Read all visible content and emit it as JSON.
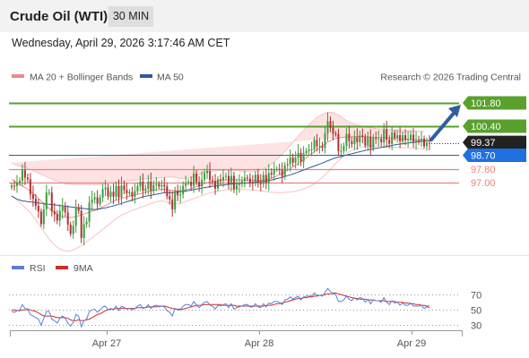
{
  "header": {
    "title": "Crude Oil (WTI)",
    "interval": "30 MIN"
  },
  "datetime": "Wednesday, April 29, 2026 3:17:46 AM CET",
  "legend": {
    "ma20": "MA 20 + Bollinger Bands",
    "ma50": "MA 50",
    "copyright": "Research © 2026 Trading Central",
    "rsi": "RSI",
    "rsi_ma": "9MA"
  },
  "colors": {
    "resistance": "#5aa02c",
    "support": "#e8837e",
    "ma50": "#2d5c9a",
    "ma20": "#f08a8a",
    "band_fill": "#fde3e3",
    "bull": "#3d9a3d",
    "bear": "#b03030",
    "price_tag": "#222222",
    "pivot_tag": "#1f6fe0",
    "arrow": "#2e5f9e",
    "rsi": "#5b7fd6",
    "rsi_ma": "#d42a2a"
  },
  "chart_data": [
    {
      "type": "candlestick",
      "name": "price",
      "x_ticks": [
        "Apr 27",
        "Apr 28",
        "Apr 29"
      ],
      "ylim": [
        92.8,
        102.5
      ],
      "levels": [
        {
          "value": 101.8,
          "label": "101.80",
          "kind": "resistance"
        },
        {
          "value": 100.4,
          "label": "100.40",
          "kind": "resistance"
        },
        {
          "value": 99.37,
          "label": "99.37",
          "kind": "last"
        },
        {
          "value": 98.7,
          "label": "98.70",
          "kind": "pivot"
        },
        {
          "value": 97.8,
          "label": "97.80",
          "kind": "support"
        },
        {
          "value": 97.0,
          "label": "97.00",
          "kind": "support"
        }
      ],
      "closes": [
        96.82,
        96.8,
        97.0,
        97.1,
        97.75,
        97.3,
        97.2,
        96.3,
        96.03,
        95.6,
        95.26,
        94.5,
        95.39,
        96.4,
        96.4,
        95.28,
        95.09,
        94.72,
        95.3,
        95.55,
        95.21,
        94.47,
        93.91,
        94.4,
        95.52,
        95.3,
        93.67,
        94.5,
        94.65,
        95.8,
        95.99,
        96.12,
        95.72,
        96.1,
        96.61,
        96.7,
        96.15,
        96.45,
        96.16,
        96.8,
        96.11,
        96.83,
        96.56,
        96.35,
        96.43,
        96.16,
        96.48,
        96.79,
        97.06,
        96.5,
        96.63,
        97.07,
        96.5,
        96.87,
        96.91,
        96.77,
        96.86,
        96.77,
        96.18,
        95.99,
        95.39,
        96.5,
        96.23,
        96.3,
        96.8,
        97.0,
        97.05,
        96.8,
        97.55,
        97.04,
        96.76,
        97.18,
        97.57,
        97.7,
        97.15,
        97.1,
        96.65,
        97.2,
        97.14,
        97.34,
        97.4,
        96.92,
        97.41,
        96.6,
        96.86,
        96.97,
        97.09,
        97.3,
        97.25,
        97.0,
        96.96,
        97.48,
        97.02,
        96.92,
        97.46,
        96.97,
        97.58,
        97.5,
        97.81,
        97.82,
        97.76,
        97.38,
        98.03,
        98.12,
        98.5,
        98.2,
        98.5,
        98.79,
        98.25,
        98.78,
        98.91,
        99.0,
        99.0,
        99.57,
        99.2,
        99.21,
        99.11,
        99.96,
        100.7,
        100.3,
        99.94,
        99.93,
        98.9,
        98.9,
        99.2,
        99.94,
        99.5,
        99.32,
        99.74,
        99.44,
        99.84,
        99.75,
        99.23,
        99.76,
        99.09,
        99.71,
        99.63,
        99.65,
        99.43,
        100.2,
        99.59,
        99.33,
        100.0,
        99.7,
        99.86,
        99.48,
        99.86,
        99.57,
        99.61,
        99.89,
        99.45,
        99.54,
        99.53,
        99.65,
        99.2,
        99.4,
        99.37
      ],
      "ma50": [
        96.2,
        96.1,
        96.0,
        95.95,
        95.9,
        95.88,
        95.86,
        95.84,
        95.82,
        95.8,
        95.78,
        95.76,
        95.74,
        95.72,
        95.7,
        95.68,
        95.66,
        95.64,
        95.62,
        95.6,
        95.58,
        95.56,
        95.54,
        95.52,
        95.5,
        95.48,
        95.46,
        95.44,
        95.42,
        95.4,
        95.39,
        95.38,
        95.4,
        95.42,
        95.45,
        95.48,
        95.52,
        95.56,
        95.6,
        95.65,
        95.7,
        95.75,
        95.8,
        95.85,
        95.9,
        95.95,
        96.0,
        96.05,
        96.1,
        96.15,
        96.18,
        96.21,
        96.24,
        96.27,
        96.3,
        96.33,
        96.36,
        96.39,
        96.4,
        96.4,
        96.4,
        96.42,
        96.44,
        96.46,
        96.48,
        96.5,
        96.52,
        96.55,
        96.58,
        96.61,
        96.64,
        96.67,
        96.7,
        96.73,
        96.76,
        96.78,
        96.8,
        96.82,
        96.84,
        96.86,
        96.88,
        96.9,
        96.92,
        96.93,
        96.94,
        96.95,
        96.96,
        96.97,
        96.98,
        96.99,
        97.0,
        97.02,
        97.04,
        97.06,
        97.08,
        97.1,
        97.13,
        97.16,
        97.2,
        97.24,
        97.28,
        97.32,
        97.37,
        97.42,
        97.47,
        97.52,
        97.58,
        97.64,
        97.7,
        97.76,
        97.82,
        97.88,
        97.94,
        98.0,
        98.06,
        98.12,
        98.18,
        98.25,
        98.32,
        98.38,
        98.44,
        98.49,
        98.54,
        98.58,
        98.62,
        98.66,
        98.7,
        98.74,
        98.78,
        98.82,
        98.86,
        98.9,
        98.94,
        98.97,
        99.0,
        99.03,
        99.06,
        99.09,
        99.12,
        99.15,
        99.18,
        99.21,
        99.24,
        99.27,
        99.3,
        99.32,
        99.34,
        99.36,
        99.38,
        99.4,
        99.42,
        99.44,
        99.46,
        99.48,
        99.5,
        99.52,
        99.53
      ],
      "ma20": [
        97.2,
        97.1,
        97.0,
        96.9,
        96.8,
        96.7,
        96.6,
        96.5,
        96.35,
        96.2,
        96.05,
        95.9,
        95.75,
        95.6,
        95.45,
        95.32,
        95.2,
        95.1,
        95.02,
        94.96,
        94.92,
        94.9,
        94.9,
        94.92,
        94.96,
        95.0,
        95.05,
        95.1,
        95.16,
        95.22,
        95.28,
        95.34,
        95.4,
        95.47,
        95.54,
        95.62,
        95.7,
        95.78,
        95.86,
        95.94,
        96.0,
        96.06,
        96.1,
        96.14,
        96.18,
        96.22,
        96.26,
        96.3,
        96.34,
        96.38,
        96.42,
        96.46,
        96.5,
        96.53,
        96.56,
        96.58,
        96.6,
        96.6,
        96.58,
        96.56,
        96.54,
        96.52,
        96.5,
        96.5,
        96.52,
        96.56,
        96.6,
        96.65,
        96.7,
        96.76,
        96.82,
        96.88,
        96.94,
        97.0,
        97.04,
        97.06,
        97.08,
        97.1,
        97.12,
        97.14,
        97.16,
        97.17,
        97.18,
        97.18,
        97.17,
        97.16,
        97.15,
        97.14,
        97.13,
        97.12,
        97.12,
        97.12,
        97.13,
        97.14,
        97.16,
        97.18,
        97.22,
        97.27,
        97.33,
        97.4,
        97.48,
        97.56,
        97.65,
        97.74,
        97.84,
        97.94,
        98.05,
        98.16,
        98.27,
        98.38,
        98.5,
        98.62,
        98.74,
        98.86,
        98.98,
        99.1,
        99.22,
        99.33,
        99.43,
        99.52,
        99.6,
        99.66,
        99.7,
        99.72,
        99.73,
        99.74,
        99.75,
        99.76,
        99.77,
        99.78,
        99.78,
        99.78,
        99.77,
        99.76,
        99.75,
        99.74,
        99.73,
        99.72,
        99.71,
        99.7,
        99.69,
        99.68,
        99.67,
        99.66,
        99.65,
        99.64,
        99.63,
        99.62,
        99.61,
        99.6,
        99.59,
        99.58,
        99.57,
        99.56,
        99.55,
        99.54,
        99.53
      ],
      "band_width": [
        1.0,
        1.0,
        1.05,
        1.1,
        1.15,
        1.2,
        1.25,
        1.3,
        1.38,
        1.45,
        1.52,
        1.6,
        1.68,
        1.76,
        1.84,
        1.9,
        1.95,
        2.0,
        2.02,
        2.03,
        2.03,
        2.02,
        2.0,
        1.97,
        1.93,
        1.88,
        1.83,
        1.78,
        1.72,
        1.66,
        1.6,
        1.54,
        1.48,
        1.42,
        1.36,
        1.3,
        1.25,
        1.2,
        1.15,
        1.1,
        1.06,
        1.02,
        0.99,
        0.96,
        0.93,
        0.9,
        0.88,
        0.86,
        0.84,
        0.82,
        0.8,
        0.78,
        0.76,
        0.74,
        0.72,
        0.7,
        0.7,
        0.72,
        0.75,
        0.78,
        0.8,
        0.8,
        0.78,
        0.75,
        0.72,
        0.7,
        0.68,
        0.67,
        0.66,
        0.66,
        0.66,
        0.66,
        0.66,
        0.66,
        0.65,
        0.64,
        0.63,
        0.62,
        0.61,
        0.6,
        0.59,
        0.58,
        0.57,
        0.56,
        0.55,
        0.55,
        0.55,
        0.55,
        0.55,
        0.55,
        0.56,
        0.58,
        0.6,
        0.63,
        0.67,
        0.72,
        0.78,
        0.85,
        0.92,
        1.0,
        1.08,
        1.16,
        1.24,
        1.32,
        1.4,
        1.48,
        1.56,
        1.64,
        1.7,
        1.76,
        1.82,
        1.86,
        1.9,
        1.92,
        1.93,
        1.92,
        1.9,
        1.86,
        1.8,
        1.72,
        1.62,
        1.5,
        1.38,
        1.25,
        1.12,
        1.0,
        0.9,
        0.82,
        0.75,
        0.7,
        0.66,
        0.62,
        0.59,
        0.57,
        0.55,
        0.54,
        0.53,
        0.52,
        0.52,
        0.52,
        0.52,
        0.52,
        0.52,
        0.52,
        0.52,
        0.52,
        0.52,
        0.52,
        0.52,
        0.52,
        0.52,
        0.52,
        0.52,
        0.52,
        0.52
      ]
    },
    {
      "type": "line",
      "name": "rsi",
      "ylim": [
        20,
        90
      ],
      "y_ticks": [
        70,
        50,
        30
      ],
      "series": [
        {
          "name": "RSI",
          "values": [
            48,
            47,
            49,
            50,
            57,
            52,
            51,
            44,
            42,
            40,
            38,
            30,
            39,
            48,
            48,
            38,
            36,
            33,
            39,
            42,
            39,
            33,
            29,
            34,
            44,
            42,
            28,
            36,
            38,
            48,
            50,
            51,
            47,
            50,
            54,
            55,
            50,
            52,
            50,
            55,
            49,
            55,
            53,
            51,
            52,
            50,
            52,
            55,
            57,
            52,
            53,
            57,
            52,
            55,
            56,
            54,
            55,
            54,
            49,
            47,
            42,
            52,
            50,
            50,
            55,
            57,
            57,
            55,
            61,
            56,
            53,
            57,
            60,
            61,
            56,
            55,
            51,
            56,
            55,
            57,
            58,
            53,
            58,
            51,
            53,
            54,
            55,
            57,
            57,
            54,
            54,
            58,
            54,
            53,
            58,
            54,
            59,
            58,
            61,
            61,
            60,
            57,
            63,
            64,
            67,
            64,
            66,
            68,
            63,
            67,
            68,
            68,
            68,
            72,
            69,
            69,
            68,
            73,
            78,
            74,
            71,
            70,
            61,
            61,
            63,
            68,
            64,
            62,
            66,
            63,
            66,
            65,
            60,
            64,
            58,
            63,
            62,
            62,
            60,
            66,
            60,
            57,
            62,
            59,
            60,
            56,
            59,
            56,
            56,
            59,
            55,
            55,
            55,
            56,
            52,
            54,
            53
          ]
        },
        {
          "name": "9MA",
          "values": [
            50,
            50,
            49,
            49,
            50,
            50,
            51,
            50,
            49,
            48,
            46,
            44,
            42,
            42,
            42,
            42,
            41,
            40,
            40,
            40,
            40,
            39,
            37,
            36,
            36,
            37,
            36,
            36,
            37,
            38,
            40,
            42,
            44,
            45,
            47,
            49,
            50,
            51,
            51,
            52,
            52,
            52,
            52,
            52,
            52,
            52,
            52,
            53,
            53,
            53,
            53,
            54,
            54,
            54,
            54,
            55,
            55,
            55,
            54,
            53,
            52,
            51,
            51,
            51,
            51,
            52,
            53,
            54,
            55,
            56,
            56,
            56,
            57,
            57,
            57,
            57,
            57,
            57,
            57,
            56,
            56,
            56,
            56,
            56,
            55,
            55,
            55,
            55,
            55,
            55,
            55,
            55,
            55,
            55,
            55,
            56,
            56,
            56,
            57,
            58,
            58,
            59,
            60,
            61,
            62,
            63,
            64,
            65,
            65,
            66,
            66,
            67,
            67,
            68,
            68,
            69,
            69,
            70,
            71,
            71,
            72,
            72,
            71,
            70,
            69,
            68,
            67,
            66,
            65,
            65,
            64,
            64,
            64,
            63,
            63,
            63,
            62,
            62,
            62,
            62,
            61,
            61,
            61,
            61,
            60,
            60,
            60,
            59,
            59,
            58,
            58,
            57,
            57,
            56,
            56,
            55,
            55
          ]
        }
      ]
    }
  ]
}
